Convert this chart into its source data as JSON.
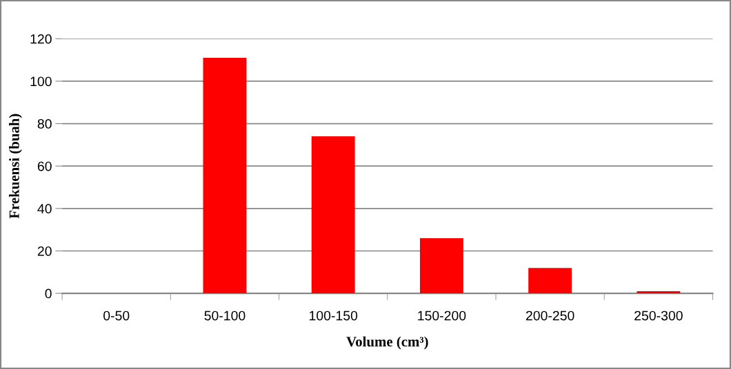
{
  "chart_data": {
    "type": "bar",
    "xlabel": "Volume (cm³)",
    "ylabel": "Frekuensi (buah)",
    "categories": [
      "0-50",
      "50-100",
      "100-150",
      "150-200",
      "200-250",
      "250-300"
    ],
    "values": [
      0,
      111,
      74,
      26,
      12,
      1
    ],
    "color": "#ff0000",
    "ylim": [
      0,
      120
    ],
    "yticks": [
      0,
      20,
      40,
      60,
      80,
      100,
      120
    ],
    "grid": "y"
  }
}
